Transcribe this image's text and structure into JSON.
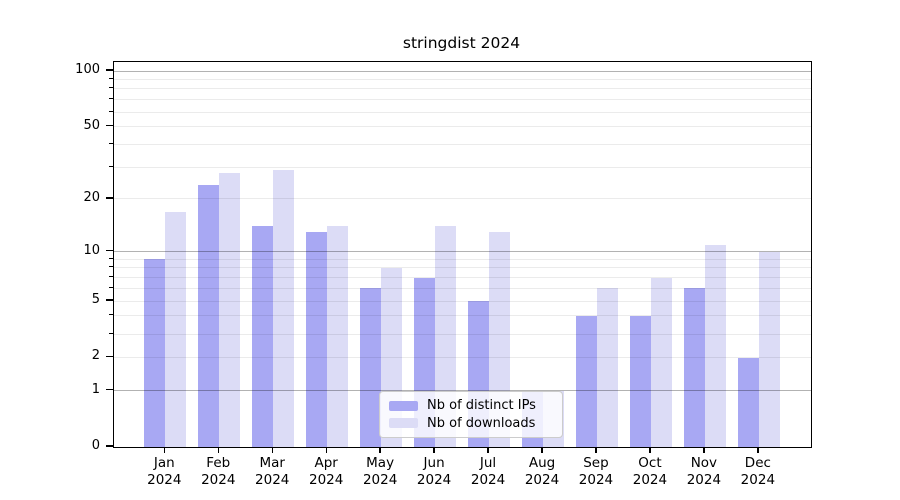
{
  "chart_data": {
    "type": "bar",
    "title": "stringdist 2024",
    "categories": [
      "Jan",
      "Feb",
      "Mar",
      "Apr",
      "May",
      "Jun",
      "Jul",
      "Aug",
      "Sep",
      "Oct",
      "Nov",
      "Dec"
    ],
    "category_year_line": "2024",
    "series": [
      {
        "name": "Nb of distinct IPs",
        "color": "#a8a8f3",
        "values": [
          9,
          24,
          14,
          13,
          6,
          7,
          5,
          1,
          4,
          4,
          6,
          2
        ]
      },
      {
        "name": "Nb of downloads",
        "color": "#dcdcf6",
        "values": [
          17,
          28,
          29,
          14,
          8,
          14,
          13,
          1,
          6,
          7,
          11,
          10
        ]
      }
    ],
    "xlabel": "",
    "ylabel": "",
    "yscale": "log1p",
    "ylim": [
      0,
      100
    ],
    "yticks_labeled": [
      100,
      50,
      20,
      10,
      5,
      2,
      1,
      0
    ],
    "grid_major": [
      100,
      10,
      1
    ],
    "grid_minor": [
      2,
      3,
      4,
      5,
      6,
      7,
      8,
      9,
      20,
      30,
      40,
      50,
      60,
      70,
      80,
      90
    ],
    "grid": "on",
    "legend_position": "lower center"
  },
  "colors": {
    "grid_major": "rgba(0,0,0,0.30)",
    "grid_minor": "rgba(0,0,0,0.08)",
    "spine": "#000000",
    "background": "#ffffff"
  }
}
